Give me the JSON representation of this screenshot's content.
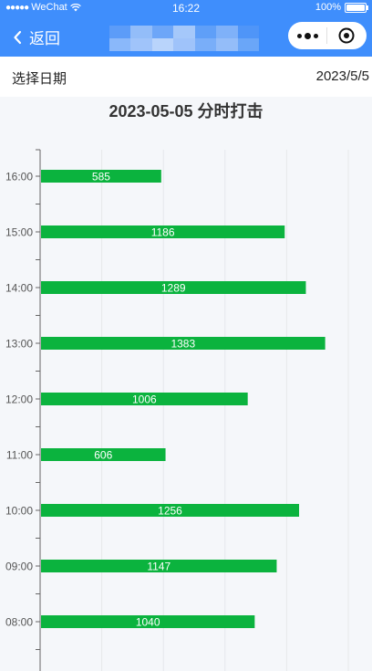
{
  "status_bar": {
    "carrier": "WeChat",
    "time": "16:22",
    "battery": "100%"
  },
  "nav": {
    "back_label": "返回",
    "back_icon": "chevron-left-icon",
    "more_icon": "more-dots-icon",
    "close_icon": "target-close-icon"
  },
  "date_picker": {
    "label": "选择日期",
    "value": "2023/5/5"
  },
  "colors": {
    "nav_bg": "#3f8efc",
    "bar": "#0bb33e",
    "page_bg": "#f5f7fa"
  },
  "chart_data": {
    "type": "bar",
    "orientation": "horizontal",
    "title": "2023-05-05 分时打击",
    "categories": [
      "08:00",
      "09:00",
      "10:00",
      "11:00",
      "12:00",
      "13:00",
      "14:00",
      "15:00",
      "16:00"
    ],
    "values": [
      1040,
      1147,
      1256,
      606,
      1006,
      1383,
      1289,
      1186,
      585
    ],
    "xlim": [
      0,
      1500
    ],
    "grid": true,
    "data_labels": true,
    "color": "#0bb33e"
  }
}
